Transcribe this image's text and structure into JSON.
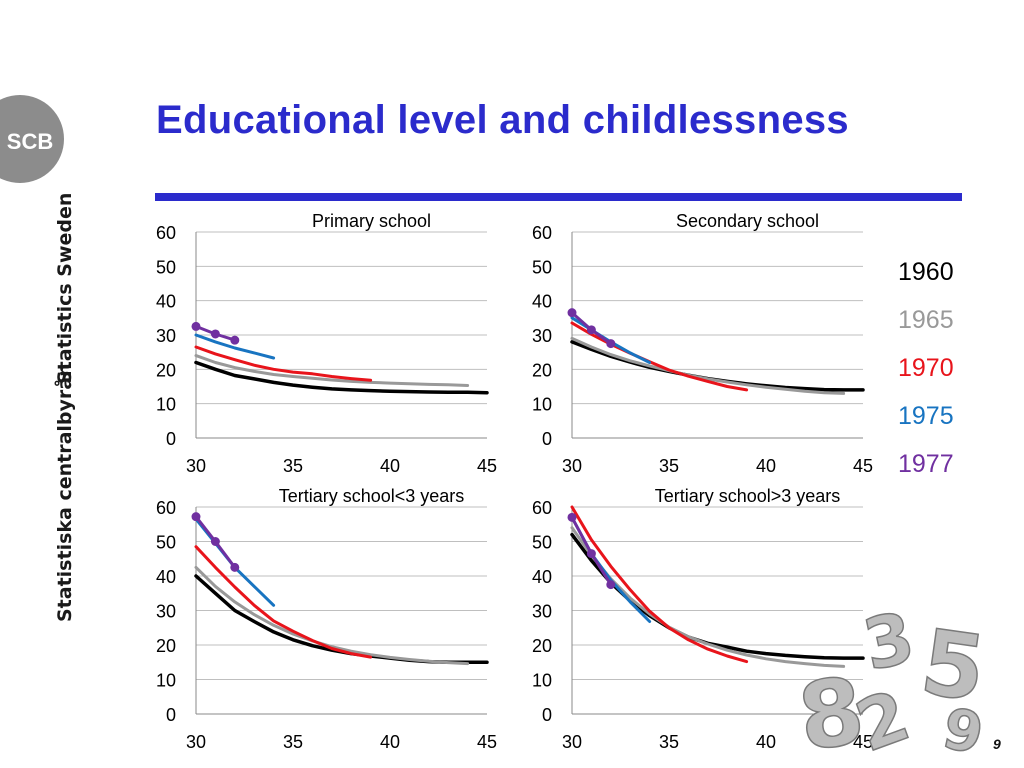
{
  "logo": {
    "text": "SCB",
    "color": "#8c8c8c"
  },
  "sidebar": {
    "line1": "Statistics Sweden",
    "line2": "Statistiska centralbyrån"
  },
  "slide": {
    "title": "Educational level and childlessness",
    "title_color": "#2b2bcc",
    "page_number": "9"
  },
  "legend": [
    {
      "label": "1960",
      "color": "#000000"
    },
    {
      "label": "1965",
      "color": "#999999"
    },
    {
      "label": "1970",
      "color": "#e8141b"
    },
    {
      "label": "1975",
      "color": "#1874c1"
    },
    {
      "label": "1977",
      "color": "#7030a0"
    }
  ],
  "chart_data": [
    {
      "type": "line",
      "title": "Primary school",
      "xlim": [
        30,
        45
      ],
      "ylim": [
        0,
        60
      ],
      "xticks": [
        30,
        35,
        40,
        45
      ],
      "yticks": [
        0,
        10,
        20,
        30,
        40,
        50,
        60
      ],
      "grid": "horizontal",
      "series": [
        {
          "name": "1960",
          "color": "#000000",
          "x": [
            30,
            31,
            32,
            33,
            34,
            35,
            36,
            37,
            38,
            39,
            40,
            41,
            42,
            43,
            44,
            45
          ],
          "y": [
            22,
            20,
            18.2,
            17.2,
            16.2,
            15.4,
            14.8,
            14.3,
            14.0,
            13.8,
            13.6,
            13.5,
            13.4,
            13.3,
            13.3,
            13.2
          ]
        },
        {
          "name": "1965",
          "color": "#999999",
          "x": [
            30,
            31,
            32,
            33,
            34,
            35,
            36,
            37,
            38,
            39,
            40,
            41,
            42,
            43,
            44
          ],
          "y": [
            24,
            22,
            20.5,
            19.4,
            18.5,
            17.9,
            17.4,
            16.9,
            16.5,
            16.2,
            16.0,
            15.8,
            15.6,
            15.5,
            15.3
          ]
        },
        {
          "name": "1970",
          "color": "#e8141b",
          "x": [
            30,
            31,
            32,
            33,
            34,
            35,
            36,
            37,
            38,
            39
          ],
          "y": [
            26.5,
            24.5,
            22.8,
            21.2,
            20,
            19.2,
            18.7,
            17.9,
            17.3,
            16.8
          ]
        },
        {
          "name": "1975",
          "color": "#1874c1",
          "x": [
            30,
            31,
            32,
            33,
            34
          ],
          "y": [
            30,
            28,
            26.2,
            24.8,
            23.3
          ]
        },
        {
          "name": "1977",
          "color": "#7030a0",
          "x": [
            30,
            31,
            32
          ],
          "y": [
            32.5,
            30.3,
            28.5
          ],
          "markers": true
        }
      ]
    },
    {
      "type": "line",
      "title": "Secondary school",
      "xlim": [
        30,
        45
      ],
      "ylim": [
        0,
        60
      ],
      "xticks": [
        30,
        35,
        40,
        45
      ],
      "yticks": [
        0,
        10,
        20,
        30,
        40,
        50,
        60
      ],
      "grid": "horizontal",
      "series": [
        {
          "name": "1960",
          "color": "#000000",
          "x": [
            30,
            31,
            32,
            33,
            34,
            35,
            36,
            37,
            38,
            39,
            40,
            41,
            42,
            43,
            44,
            45
          ],
          "y": [
            28,
            25.8,
            23.8,
            22.1,
            20.6,
            19.4,
            18.3,
            17.3,
            16.5,
            15.8,
            15.2,
            14.7,
            14.4,
            14.1,
            14.0,
            14.0
          ]
        },
        {
          "name": "1965",
          "color": "#999999",
          "x": [
            30,
            31,
            32,
            33,
            34,
            35,
            36,
            37,
            38,
            39,
            40,
            41,
            42,
            43,
            44
          ],
          "y": [
            29,
            26.5,
            24.3,
            22.5,
            21,
            19.6,
            18.3,
            17.2,
            16.3,
            15.5,
            14.8,
            14.2,
            13.6,
            13.2,
            13.0
          ]
        },
        {
          "name": "1970",
          "color": "#e8141b",
          "x": [
            30,
            31,
            32,
            33,
            34,
            35,
            36,
            37,
            38,
            39
          ],
          "y": [
            33.5,
            30.2,
            27.3,
            24.7,
            22.2,
            19.8,
            18,
            16.5,
            15,
            14
          ]
        },
        {
          "name": "1975",
          "color": "#1874c1",
          "x": [
            30,
            31,
            32,
            33,
            34
          ],
          "y": [
            35,
            31.5,
            28,
            24.8,
            22
          ]
        },
        {
          "name": "1977",
          "color": "#7030a0",
          "x": [
            30,
            31,
            32
          ],
          "y": [
            36.5,
            31.5,
            27.5
          ],
          "markers": true
        }
      ]
    },
    {
      "type": "line",
      "title": "Tertiary school<3 years",
      "xlim": [
        30,
        45
      ],
      "ylim": [
        0,
        60
      ],
      "xticks": [
        30,
        35,
        40,
        45
      ],
      "yticks": [
        0,
        10,
        20,
        30,
        40,
        50,
        60
      ],
      "grid": "horizontal",
      "series": [
        {
          "name": "1960",
          "color": "#000000",
          "x": [
            30,
            31,
            32,
            33,
            34,
            35,
            36,
            37,
            38,
            39,
            40,
            41,
            42,
            43,
            44,
            45
          ],
          "y": [
            40,
            35,
            30,
            26.8,
            23.8,
            21.5,
            19.8,
            18.5,
            17.5,
            16.8,
            16.2,
            15.6,
            15.2,
            15,
            15,
            15
          ]
        },
        {
          "name": "1965",
          "color": "#999999",
          "x": [
            30,
            31,
            32,
            33,
            34,
            35,
            36,
            37,
            38,
            39,
            40,
            41,
            42,
            43,
            44
          ],
          "y": [
            42.5,
            37,
            32.5,
            28.8,
            25.7,
            23.2,
            21.2,
            19.5,
            18.2,
            17.2,
            16.4,
            15.8,
            15.3,
            14.9,
            14.6
          ]
        },
        {
          "name": "1970",
          "color": "#e8141b",
          "x": [
            30,
            31,
            32,
            33,
            34,
            35,
            36,
            37,
            38,
            39
          ],
          "y": [
            48.5,
            42.5,
            36.8,
            31.5,
            27,
            24,
            21.3,
            19,
            17.5,
            16.5
          ]
        },
        {
          "name": "1975",
          "color": "#1874c1",
          "x": [
            30,
            31,
            32,
            33,
            34
          ],
          "y": [
            56.5,
            49.5,
            42.5,
            37,
            31.5
          ]
        },
        {
          "name": "1977",
          "color": "#7030a0",
          "x": [
            30,
            31,
            32
          ],
          "y": [
            57.2,
            50,
            42.5
          ],
          "markers": true
        }
      ]
    },
    {
      "type": "line",
      "title": "Tertiary school>3 years",
      "xlim": [
        30,
        45
      ],
      "ylim": [
        0,
        60
      ],
      "xticks": [
        30,
        35,
        40,
        45
      ],
      "yticks": [
        0,
        10,
        20,
        30,
        40,
        50,
        60
      ],
      "grid": "horizontal",
      "series": [
        {
          "name": "1960",
          "color": "#000000",
          "x": [
            30,
            31,
            32,
            33,
            34,
            35,
            36,
            37,
            38,
            39,
            40,
            41,
            42,
            43,
            44,
            45
          ],
          "y": [
            52,
            44.5,
            38,
            32.8,
            28.5,
            25,
            22.3,
            20.5,
            19.4,
            18.2,
            17.5,
            17,
            16.6,
            16.3,
            16.2,
            16.2
          ]
        },
        {
          "name": "1965",
          "color": "#999999",
          "x": [
            30,
            31,
            32,
            33,
            34,
            35,
            36,
            37,
            38,
            39,
            40,
            41,
            42,
            43,
            44
          ],
          "y": [
            54,
            46,
            39.2,
            33.6,
            29,
            25.2,
            22.4,
            20.3,
            18.5,
            17.1,
            16,
            15.2,
            14.6,
            14.1,
            13.8
          ]
        },
        {
          "name": "1970",
          "color": "#e8141b",
          "x": [
            30,
            31,
            32,
            33,
            34,
            35,
            36,
            37,
            38,
            39
          ],
          "y": [
            60,
            50.5,
            42.8,
            36,
            29.8,
            25,
            21.5,
            18.8,
            16.8,
            15.2
          ]
        },
        {
          "name": "1975",
          "color": "#1874c1",
          "x": [
            30,
            31,
            32,
            33,
            34
          ],
          "y": [
            57,
            46.5,
            38.8,
            32.5,
            26.8
          ]
        },
        {
          "name": "1977",
          "color": "#7030a0",
          "x": [
            30,
            31,
            32
          ],
          "y": [
            57,
            46.5,
            37.5
          ],
          "markers": true
        }
      ]
    }
  ]
}
